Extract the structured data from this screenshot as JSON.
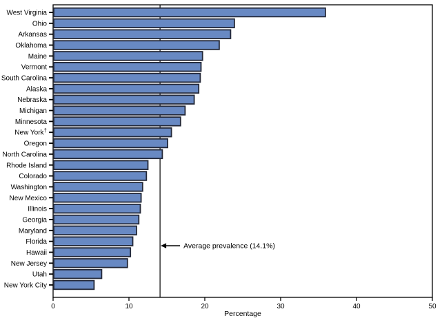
{
  "chart_data": {
    "type": "bar",
    "orientation": "horizontal",
    "title": "",
    "xlabel": "Percentage",
    "xlim": [
      0,
      50
    ],
    "xticks": [
      0,
      10,
      20,
      30,
      40,
      50
    ],
    "grid": false,
    "legend_position": "none",
    "categories": [
      "West Virginia",
      "Ohio",
      "Arkansas",
      "Oklahoma",
      "Maine",
      "Vermont",
      "South Carolina",
      "Alaska",
      "Nebraska",
      "Michigan",
      "Minnesota",
      "New York†",
      "Oregon",
      "North Carolina",
      "Rhode Island",
      "Colorado",
      "Washington",
      "New Mexico",
      "Illinois",
      "Georgia",
      "Maryland",
      "Florida",
      "Hawaii",
      "New Jersey",
      "Utah",
      "New York City"
    ],
    "values": [
      35.9,
      23.9,
      23.4,
      21.9,
      19.7,
      19.5,
      19.4,
      19.2,
      18.6,
      17.4,
      16.8,
      15.6,
      15.1,
      14.4,
      12.5,
      12.3,
      11.8,
      11.6,
      11.5,
      11.3,
      11.0,
      10.5,
      10.2,
      9.8,
      6.4,
      5.4
    ],
    "average_line": {
      "value": 14.1,
      "label": "Average prevalence (14.1%)"
    },
    "colors": {
      "bar_fill": "#6889c3",
      "bar_border": "#232838",
      "axis": "#000000",
      "background": "#ffffff"
    }
  }
}
